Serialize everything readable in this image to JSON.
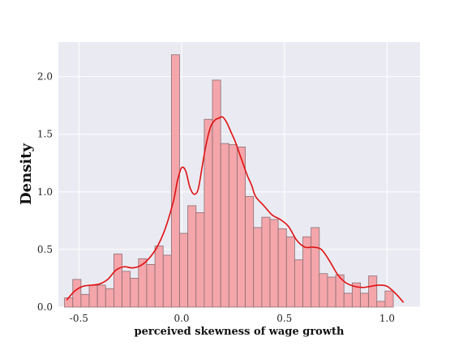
{
  "chart_data": {
    "type": "histogram",
    "xlabel": "perceived skewness of wage growth",
    "ylabel": "Density",
    "xlim": [
      -0.6,
      1.16
    ],
    "ylim": [
      0.0,
      2.3
    ],
    "xticks": [
      -0.5,
      0.0,
      0.5,
      1.0
    ],
    "xtick_labels": [
      "-0.5",
      "0.0",
      "0.5",
      "1.0"
    ],
    "yticks": [
      0.0,
      0.5,
      1.0,
      1.5,
      2.0
    ],
    "ytick_labels": [
      "0.0",
      "0.5",
      "1.0",
      "1.5",
      "2.0"
    ],
    "grid": true,
    "bins": {
      "bin_start": -0.57,
      "bin_width": 0.04,
      "densities": [
        0.08,
        0.24,
        0.11,
        0.19,
        0.19,
        0.16,
        0.46,
        0.31,
        0.25,
        0.42,
        0.37,
        0.53,
        0.45,
        2.19,
        0.64,
        0.88,
        0.82,
        1.63,
        1.97,
        1.42,
        1.41,
        1.39,
        0.96,
        0.69,
        0.78,
        0.76,
        0.68,
        0.61,
        0.41,
        0.61,
        0.69,
        0.29,
        0.26,
        0.28,
        0.12,
        0.21,
        0.12,
        0.27,
        0.05,
        0.14
      ]
    },
    "kde": {
      "x": [
        -0.56,
        -0.52,
        -0.48,
        -0.44,
        -0.4,
        -0.36,
        -0.32,
        -0.28,
        -0.24,
        -0.2,
        -0.16,
        -0.12,
        -0.08,
        -0.04,
        -0.02,
        0.0,
        0.02,
        0.04,
        0.06,
        0.08,
        0.1,
        0.12,
        0.14,
        0.16,
        0.18,
        0.2,
        0.22,
        0.24,
        0.26,
        0.28,
        0.3,
        0.32,
        0.34,
        0.36,
        0.4,
        0.44,
        0.48,
        0.52,
        0.56,
        0.6,
        0.64,
        0.68,
        0.72,
        0.76,
        0.8,
        0.84,
        0.88,
        0.92,
        0.96,
        1.0,
        1.04,
        1.08
      ],
      "y": [
        0.06,
        0.14,
        0.18,
        0.19,
        0.2,
        0.24,
        0.32,
        0.35,
        0.34,
        0.36,
        0.42,
        0.52,
        0.68,
        0.92,
        1.1,
        1.21,
        1.18,
        1.04,
        0.98,
        1.02,
        1.22,
        1.42,
        1.56,
        1.62,
        1.64,
        1.65,
        1.6,
        1.52,
        1.44,
        1.34,
        1.24,
        1.14,
        1.06,
        0.96,
        0.88,
        0.8,
        0.76,
        0.7,
        0.58,
        0.52,
        0.52,
        0.5,
        0.4,
        0.28,
        0.21,
        0.18,
        0.17,
        0.18,
        0.19,
        0.18,
        0.12,
        0.04
      ]
    }
  },
  "colors": {
    "bar_fill": "#f4a6ab",
    "bar_edge": "#8a6e72",
    "kde_line": "#e01010",
    "plot_background": "#eaeaf2",
    "grid": "#ffffff"
  }
}
